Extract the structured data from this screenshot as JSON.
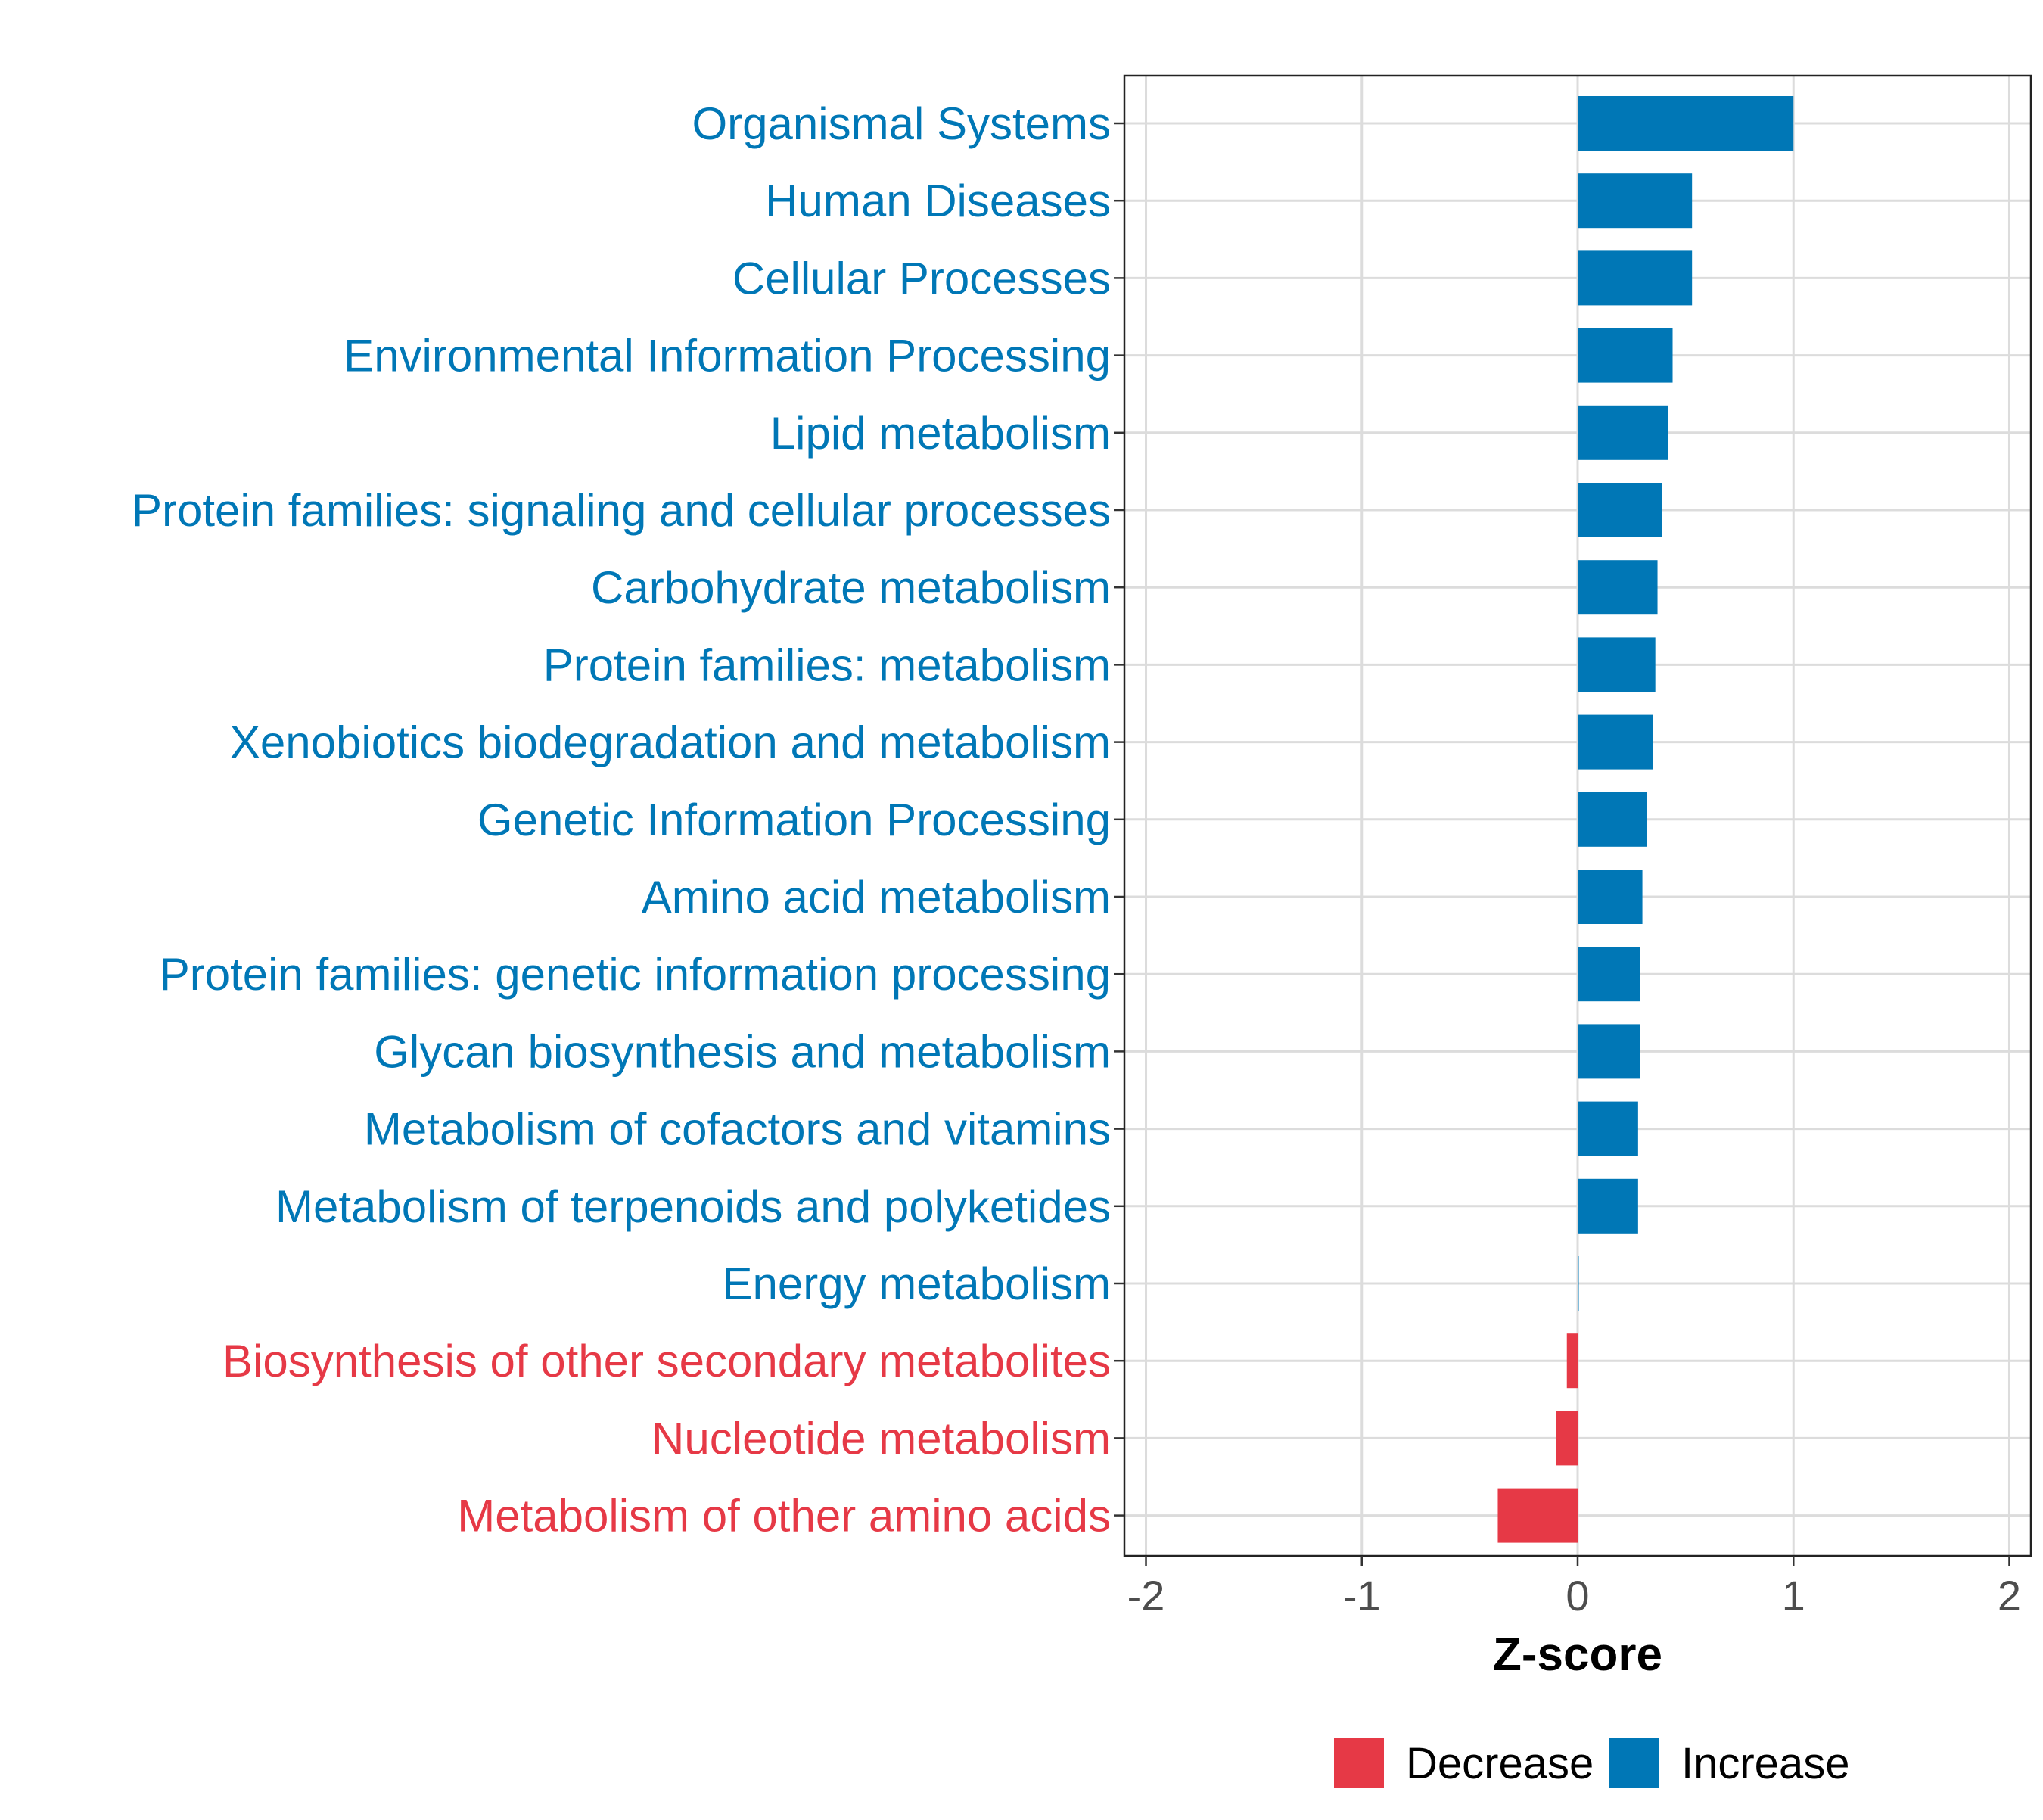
{
  "chart_data": {
    "type": "bar",
    "orientation": "horizontal",
    "title": "",
    "xlabel": "Z-score",
    "ylabel": "",
    "xlim": [
      -2.1,
      2.1
    ],
    "xticks": [
      -2,
      -1,
      0,
      1,
      2
    ],
    "grid": true,
    "legend_position": "bottom",
    "colors": {
      "Decrease": "#e63946",
      "Increase": "#0077b6"
    },
    "legend": [
      {
        "label": "Decrease",
        "color": "#e63946"
      },
      {
        "label": "Increase",
        "color": "#0077b6"
      }
    ],
    "categories": [
      "Organismal Systems",
      "Human Diseases",
      "Cellular Processes",
      "Environmental Information Processing",
      "Lipid metabolism",
      "Protein families: signaling and cellular processes",
      "Carbohydrate metabolism",
      "Protein families: metabolism",
      "Xenobiotics biodegradation and metabolism",
      "Genetic Information Processing",
      "Amino acid metabolism",
      "Protein families: genetic information processing",
      "Glycan biosynthesis and metabolism",
      "Metabolism of cofactors and vitamins",
      "Metabolism of terpenoids and polyketides",
      "Energy metabolism",
      "Biosynthesis of other secondary metabolites",
      "Nucleotide metabolism",
      "Metabolism of other amino acids"
    ],
    "values": [
      1.0,
      0.53,
      0.53,
      0.44,
      0.42,
      0.39,
      0.37,
      0.36,
      0.35,
      0.32,
      0.3,
      0.29,
      0.29,
      0.28,
      0.28,
      0.0,
      -0.05,
      -0.1,
      -0.37
    ],
    "groups": [
      "Increase",
      "Increase",
      "Increase",
      "Increase",
      "Increase",
      "Increase",
      "Increase",
      "Increase",
      "Increase",
      "Increase",
      "Increase",
      "Increase",
      "Increase",
      "Increase",
      "Increase",
      "Increase",
      "Decrease",
      "Decrease",
      "Decrease"
    ]
  }
}
